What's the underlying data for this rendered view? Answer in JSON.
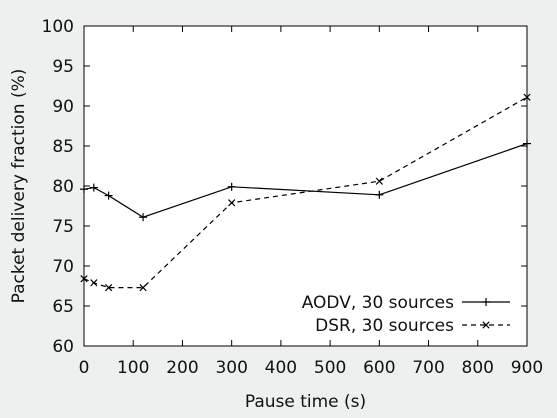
{
  "chart_data": {
    "type": "line",
    "title": "",
    "xlabel": "Pause time (s)",
    "ylabel": "Packet delivery fraction (%)",
    "xlim": [
      0,
      900
    ],
    "ylim": [
      60,
      100
    ],
    "x_ticks": [
      0,
      100,
      200,
      300,
      400,
      500,
      600,
      700,
      800,
      900
    ],
    "y_ticks": [
      60,
      65,
      70,
      75,
      80,
      85,
      90,
      95,
      100
    ],
    "grid": false,
    "legend_position": "bottom-right",
    "background": "#eef0ef",
    "plot_background": "#ffffff",
    "series": [
      {
        "name": "AODV, 30 sources",
        "style": "solid",
        "marker": "plus",
        "color": "#000000",
        "x": [
          0,
          20,
          50,
          120,
          300,
          600,
          900
        ],
        "y": [
          79.6,
          79.8,
          78.8,
          76.1,
          79.9,
          78.9,
          85.3
        ]
      },
      {
        "name": "DSR, 30 sources",
        "style": "dashed",
        "marker": "cross",
        "color": "#000000",
        "x": [
          0,
          20,
          50,
          120,
          300,
          600,
          900
        ],
        "y": [
          68.4,
          67.9,
          67.3,
          67.3,
          77.9,
          80.6,
          91.1
        ]
      }
    ]
  }
}
